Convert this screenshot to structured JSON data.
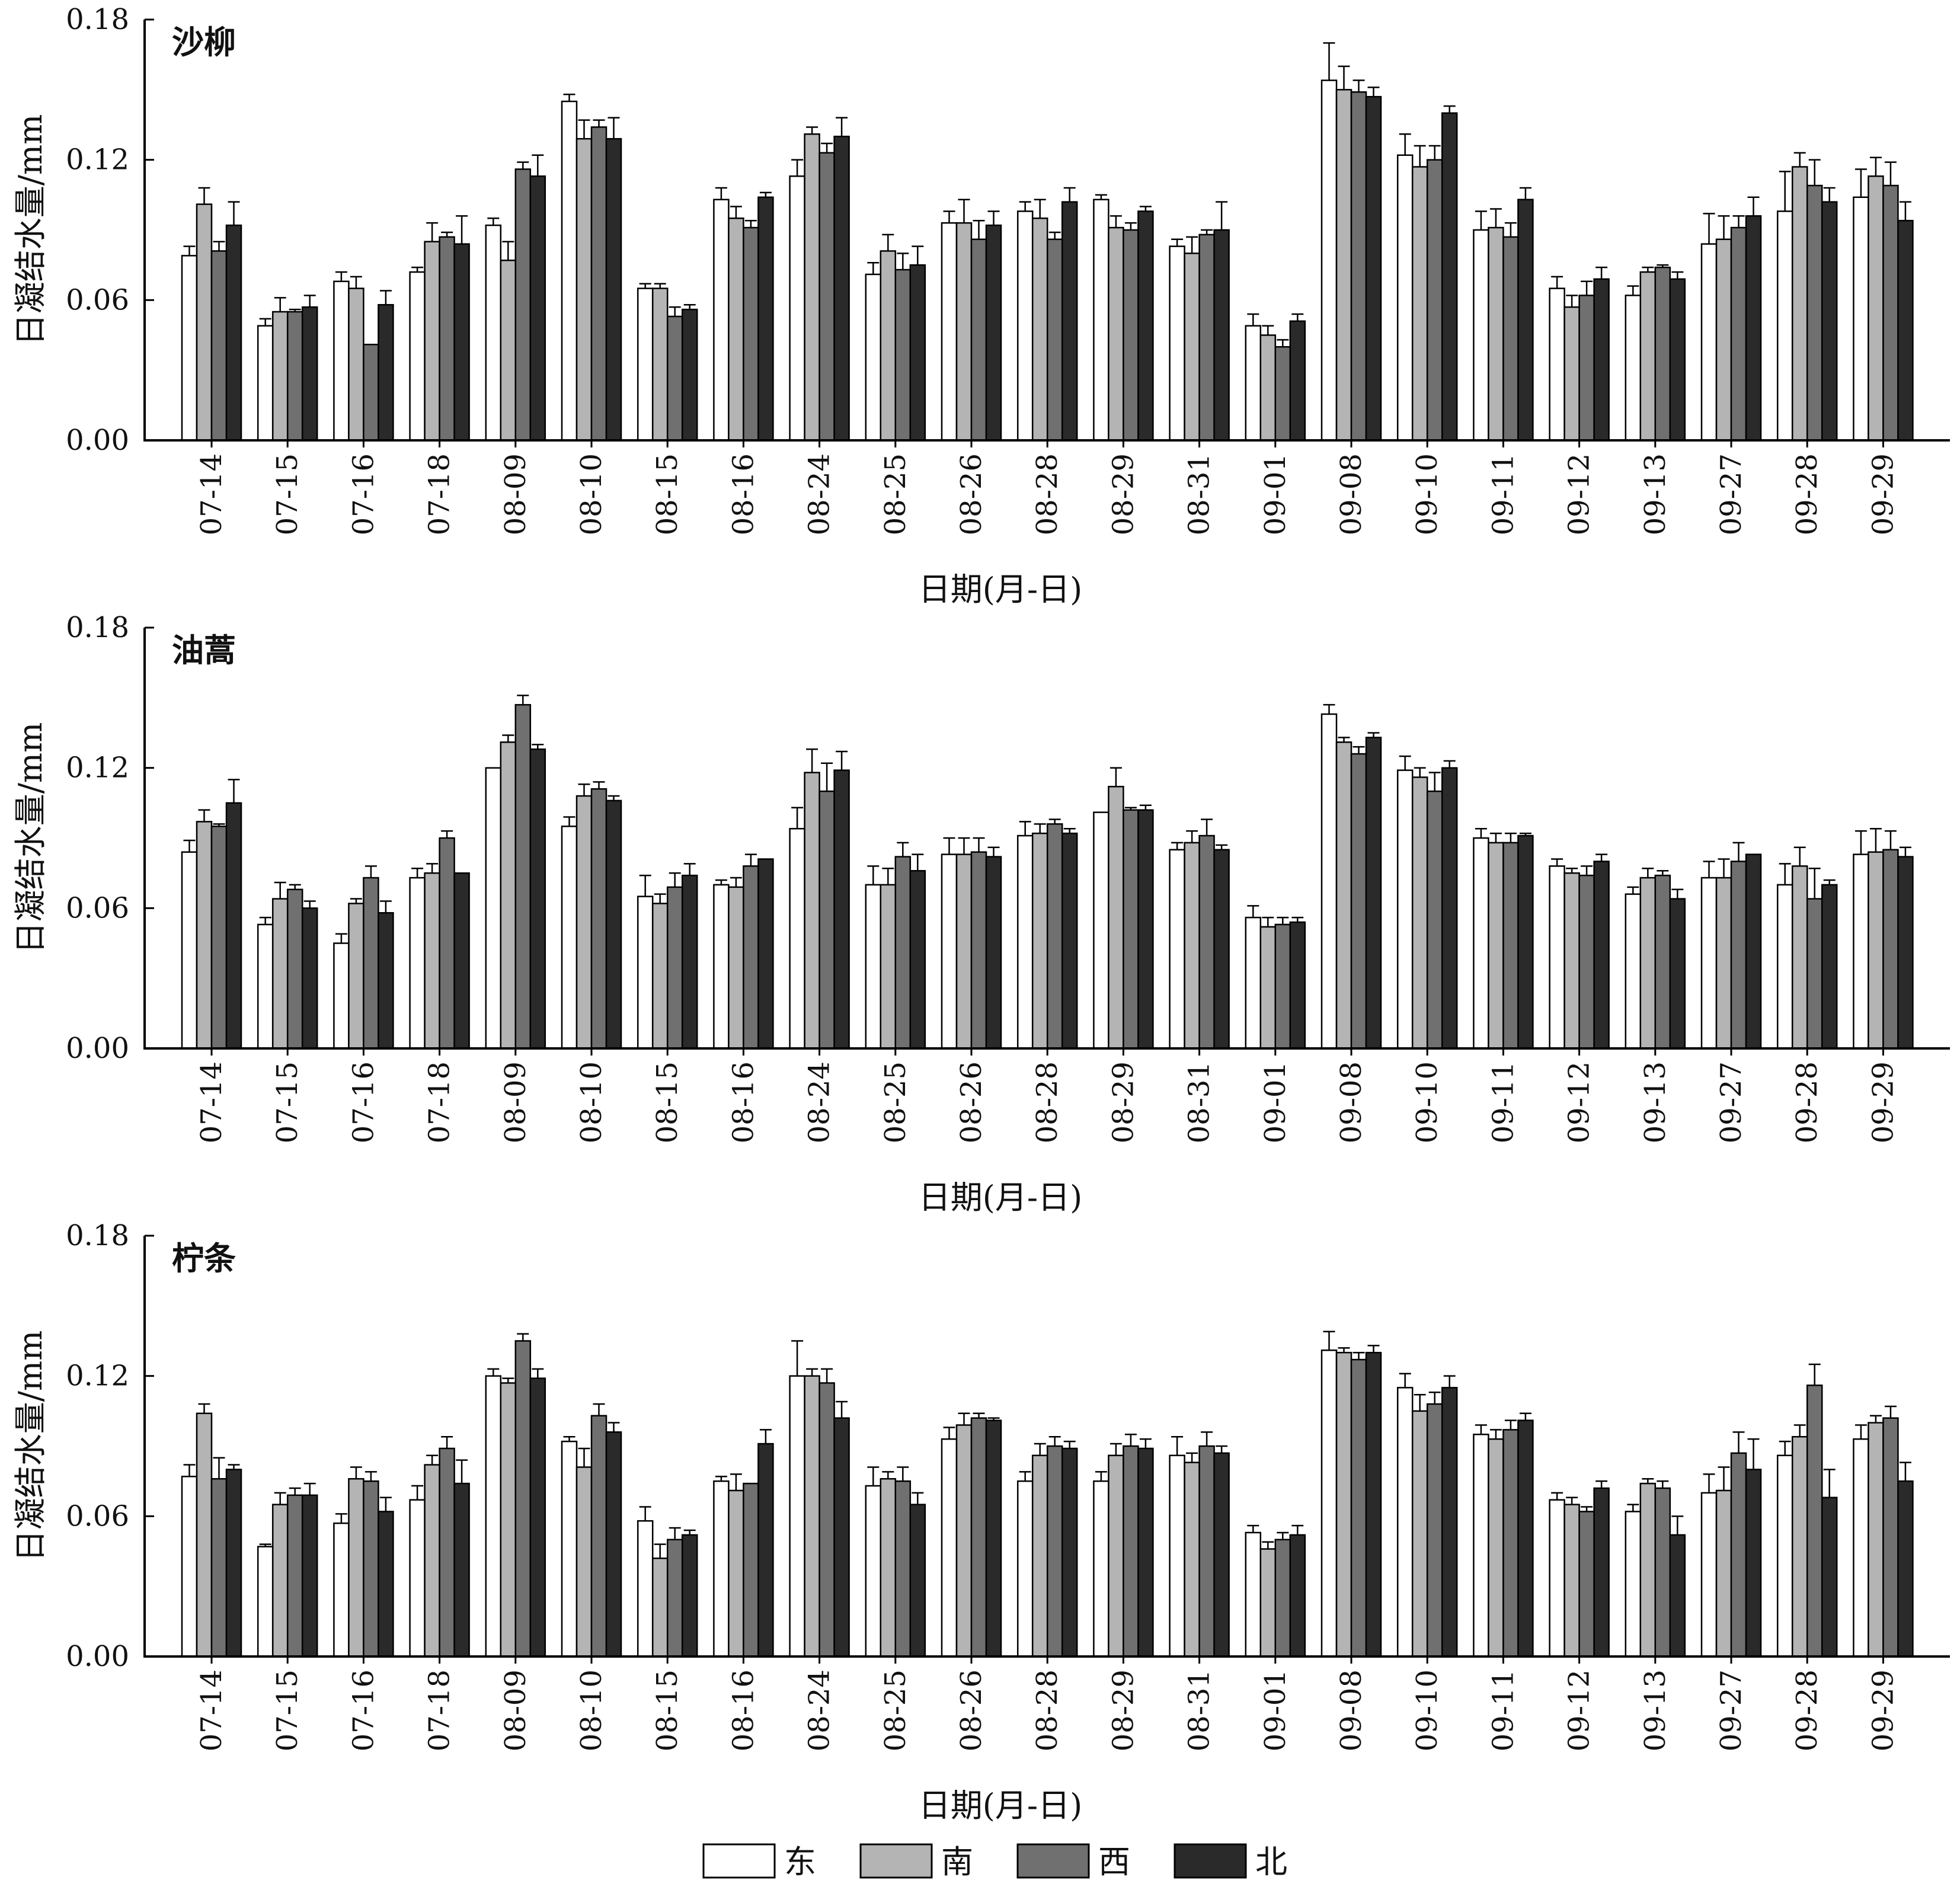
{
  "chart_data": [
    {
      "type": "bar",
      "title": "沙柳",
      "xlabel": "日期(月-日)",
      "ylabel": "日凝结水量/mm",
      "ylim": [
        0,
        0.18
      ],
      "yticks": [
        "0.00",
        "0.06",
        "0.12",
        "0.18"
      ],
      "categories": [
        "07-14",
        "07-15",
        "07-16",
        "07-18",
        "08-09",
        "08-10",
        "08-15",
        "08-16",
        "08-24",
        "08-25",
        "08-26",
        "08-28",
        "08-29",
        "08-31",
        "09-01",
        "09-08",
        "09-10",
        "09-11",
        "09-12",
        "09-13",
        "09-27",
        "09-28",
        "09-29"
      ],
      "series": [
        {
          "name": "东",
          "values": [
            0.079,
            0.049,
            0.068,
            0.072,
            0.092,
            0.145,
            0.065,
            0.103,
            0.113,
            0.071,
            0.093,
            0.098,
            0.103,
            0.083,
            0.049,
            0.154,
            0.122,
            0.09,
            0.065,
            0.062,
            0.084,
            0.098,
            0.104
          ],
          "errors": [
            0.004,
            0.003,
            0.004,
            0.002,
            0.003,
            0.003,
            0.002,
            0.005,
            0.007,
            0.005,
            0.005,
            0.004,
            0.002,
            0.003,
            0.005,
            0.016,
            0.009,
            0.008,
            0.005,
            0.004,
            0.013,
            0.017,
            0.012
          ]
        },
        {
          "name": "南",
          "values": [
            0.101,
            0.055,
            0.065,
            0.085,
            0.077,
            0.129,
            0.065,
            0.095,
            0.131,
            0.081,
            0.093,
            0.095,
            0.091,
            0.08,
            0.045,
            0.15,
            0.117,
            0.091,
            0.057,
            0.072,
            0.086,
            0.117,
            0.113
          ],
          "errors": [
            0.007,
            0.006,
            0.005,
            0.008,
            0.008,
            0.008,
            0.002,
            0.005,
            0.003,
            0.007,
            0.01,
            0.008,
            0.005,
            0.007,
            0.004,
            0.01,
            0.009,
            0.008,
            0.005,
            0.002,
            0.01,
            0.006,
            0.008
          ]
        },
        {
          "name": "西",
          "values": [
            0.081,
            0.055,
            0.041,
            0.087,
            0.116,
            0.134,
            0.053,
            0.091,
            0.123,
            0.073,
            0.086,
            0.086,
            0.09,
            0.088,
            0.04,
            0.149,
            0.12,
            0.087,
            0.062,
            0.074,
            0.091,
            0.109,
            0.109
          ],
          "errors": [
            0.004,
            0.001,
            0.0,
            0.002,
            0.003,
            0.003,
            0.004,
            0.003,
            0.004,
            0.007,
            0.008,
            0.003,
            0.003,
            0.002,
            0.003,
            0.005,
            0.006,
            0.006,
            0.006,
            0.001,
            0.005,
            0.011,
            0.01
          ]
        },
        {
          "name": "北",
          "values": [
            0.092,
            0.057,
            0.058,
            0.084,
            0.113,
            0.129,
            0.056,
            0.104,
            0.13,
            0.075,
            0.092,
            0.102,
            0.098,
            0.09,
            0.051,
            0.147,
            0.14,
            0.103,
            0.069,
            0.069,
            0.096,
            0.102,
            0.094
          ],
          "errors": [
            0.01,
            0.005,
            0.006,
            0.012,
            0.009,
            0.009,
            0.002,
            0.002,
            0.008,
            0.008,
            0.006,
            0.006,
            0.002,
            0.012,
            0.003,
            0.004,
            0.003,
            0.005,
            0.005,
            0.003,
            0.008,
            0.006,
            0.008
          ]
        }
      ]
    },
    {
      "type": "bar",
      "title": "油蒿",
      "xlabel": "日期(月-日)",
      "ylabel": "日凝结水量/mm",
      "ylim": [
        0,
        0.18
      ],
      "yticks": [
        "0.00",
        "0.06",
        "0.12",
        "0.18"
      ],
      "categories": [
        "07-14",
        "07-15",
        "07-16",
        "07-18",
        "08-09",
        "08-10",
        "08-15",
        "08-16",
        "08-24",
        "08-25",
        "08-26",
        "08-28",
        "08-29",
        "08-31",
        "09-01",
        "09-08",
        "09-10",
        "09-11",
        "09-12",
        "09-13",
        "09-27",
        "09-28",
        "09-29"
      ],
      "series": [
        {
          "name": "东",
          "values": [
            0.084,
            0.053,
            0.045,
            0.073,
            0.12,
            0.095,
            0.065,
            0.07,
            0.094,
            0.07,
            0.083,
            0.091,
            0.101,
            0.085,
            0.056,
            0.143,
            0.119,
            0.09,
            0.078,
            0.066,
            0.073,
            0.07,
            0.083
          ],
          "errors": [
            0.005,
            0.003,
            0.004,
            0.004,
            0.0,
            0.004,
            0.009,
            0.002,
            0.009,
            0.008,
            0.007,
            0.006,
            0.0,
            0.003,
            0.005,
            0.004,
            0.006,
            0.004,
            0.003,
            0.003,
            0.007,
            0.009,
            0.01
          ]
        },
        {
          "name": "南",
          "values": [
            0.097,
            0.064,
            0.062,
            0.075,
            0.131,
            0.108,
            0.062,
            0.069,
            0.118,
            0.07,
            0.083,
            0.092,
            0.112,
            0.088,
            0.052,
            0.131,
            0.116,
            0.088,
            0.075,
            0.073,
            0.073,
            0.078,
            0.084
          ],
          "errors": [
            0.005,
            0.007,
            0.002,
            0.004,
            0.003,
            0.005,
            0.004,
            0.004,
            0.01,
            0.007,
            0.007,
            0.004,
            0.008,
            0.005,
            0.004,
            0.002,
            0.004,
            0.004,
            0.002,
            0.004,
            0.008,
            0.008,
            0.01
          ]
        },
        {
          "name": "西",
          "values": [
            0.095,
            0.068,
            0.073,
            0.09,
            0.147,
            0.111,
            0.069,
            0.078,
            0.11,
            0.082,
            0.084,
            0.096,
            0.102,
            0.091,
            0.053,
            0.126,
            0.11,
            0.088,
            0.074,
            0.074,
            0.08,
            0.064,
            0.085
          ],
          "errors": [
            0.001,
            0.002,
            0.005,
            0.003,
            0.004,
            0.003,
            0.006,
            0.005,
            0.012,
            0.006,
            0.006,
            0.002,
            0.001,
            0.007,
            0.003,
            0.003,
            0.008,
            0.004,
            0.004,
            0.002,
            0.008,
            0.013,
            0.008
          ]
        },
        {
          "name": "北",
          "values": [
            0.105,
            0.06,
            0.058,
            0.075,
            0.128,
            0.106,
            0.074,
            0.081,
            0.119,
            0.076,
            0.082,
            0.092,
            0.102,
            0.085,
            0.054,
            0.133,
            0.12,
            0.091,
            0.08,
            0.064,
            0.083,
            0.07,
            0.082
          ],
          "errors": [
            0.01,
            0.003,
            0.005,
            0.0,
            0.002,
            0.002,
            0.005,
            0.0,
            0.008,
            0.007,
            0.004,
            0.002,
            0.002,
            0.002,
            0.002,
            0.002,
            0.003,
            0.001,
            0.003,
            0.004,
            0.0,
            0.002,
            0.004
          ]
        }
      ]
    },
    {
      "type": "bar",
      "title": "柠条",
      "xlabel": "日期(月-日)",
      "ylabel": "日凝结水量/mm",
      "ylim": [
        0,
        0.18
      ],
      "yticks": [
        "0.00",
        "0.06",
        "0.12",
        "0.18"
      ],
      "categories": [
        "07-14",
        "07-15",
        "07-16",
        "07-18",
        "08-09",
        "08-10",
        "08-15",
        "08-16",
        "08-24",
        "08-25",
        "08-26",
        "08-28",
        "08-29",
        "08-31",
        "09-01",
        "09-08",
        "09-10",
        "09-11",
        "09-12",
        "09-13",
        "09-27",
        "09-28",
        "09-29"
      ],
      "series": [
        {
          "name": "东",
          "values": [
            0.077,
            0.047,
            0.057,
            0.067,
            0.12,
            0.092,
            0.058,
            0.075,
            0.12,
            0.073,
            0.093,
            0.075,
            0.075,
            0.086,
            0.053,
            0.131,
            0.115,
            0.095,
            0.067,
            0.062,
            0.07,
            0.086,
            0.093
          ],
          "errors": [
            0.005,
            0.001,
            0.004,
            0.006,
            0.003,
            0.002,
            0.006,
            0.002,
            0.015,
            0.008,
            0.005,
            0.004,
            0.004,
            0.008,
            0.003,
            0.008,
            0.006,
            0.004,
            0.003,
            0.003,
            0.008,
            0.006,
            0.006
          ]
        },
        {
          "name": "南",
          "values": [
            0.104,
            0.065,
            0.076,
            0.082,
            0.117,
            0.081,
            0.042,
            0.071,
            0.12,
            0.076,
            0.099,
            0.086,
            0.086,
            0.083,
            0.046,
            0.13,
            0.105,
            0.093,
            0.065,
            0.074,
            0.071,
            0.094,
            0.1
          ],
          "errors": [
            0.004,
            0.005,
            0.005,
            0.004,
            0.002,
            0.008,
            0.006,
            0.007,
            0.003,
            0.003,
            0.005,
            0.005,
            0.005,
            0.004,
            0.003,
            0.002,
            0.007,
            0.004,
            0.003,
            0.002,
            0.01,
            0.005,
            0.003
          ]
        },
        {
          "name": "西",
          "values": [
            0.076,
            0.069,
            0.075,
            0.089,
            0.135,
            0.103,
            0.05,
            0.074,
            0.117,
            0.075,
            0.102,
            0.09,
            0.09,
            0.09,
            0.05,
            0.127,
            0.108,
            0.097,
            0.062,
            0.072,
            0.087,
            0.116,
            0.102
          ],
          "errors": [
            0.009,
            0.003,
            0.004,
            0.005,
            0.003,
            0.005,
            0.005,
            0.0,
            0.006,
            0.006,
            0.002,
            0.004,
            0.005,
            0.006,
            0.003,
            0.003,
            0.005,
            0.004,
            0.002,
            0.003,
            0.009,
            0.009,
            0.005
          ]
        },
        {
          "name": "北",
          "values": [
            0.08,
            0.069,
            0.062,
            0.074,
            0.119,
            0.096,
            0.052,
            0.091,
            0.102,
            0.065,
            0.101,
            0.089,
            0.089,
            0.087,
            0.052,
            0.13,
            0.115,
            0.101,
            0.072,
            0.052,
            0.08,
            0.068,
            0.075
          ],
          "errors": [
            0.002,
            0.005,
            0.006,
            0.01,
            0.004,
            0.004,
            0.002,
            0.006,
            0.007,
            0.005,
            0.001,
            0.003,
            0.004,
            0.003,
            0.004,
            0.003,
            0.005,
            0.003,
            0.003,
            0.008,
            0.013,
            0.012,
            0.008
          ]
        }
      ]
    }
  ],
  "legend": {
    "placement": "bottom-center",
    "items": [
      {
        "label": "东",
        "color": "#ffffff"
      },
      {
        "label": "南",
        "color": "#b4b4b4"
      },
      {
        "label": "西",
        "color": "#707070"
      },
      {
        "label": "北",
        "color": "#2a2a2a"
      }
    ]
  },
  "colors": {
    "axis": "#000000",
    "bar_stroke": "#000000"
  }
}
